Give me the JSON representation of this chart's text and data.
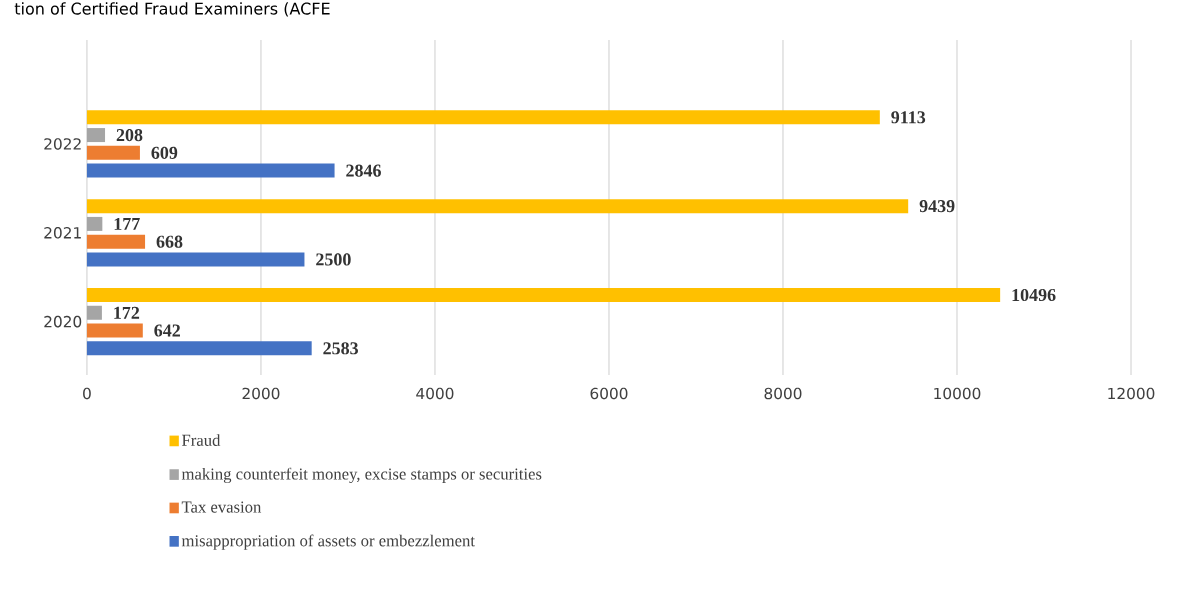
{
  "chart_data": {
    "type": "bar",
    "orientation": "horizontal",
    "categories": [
      "2022",
      "2021",
      "2020"
    ],
    "series": [
      {
        "name": "Fraud",
        "color": "#ffc000",
        "values": [
          9113,
          9439,
          10496
        ]
      },
      {
        "name": "making counterfeit money, excise stamps or securities",
        "color": "#a5a5a5",
        "values": [
          208,
          177,
          172
        ]
      },
      {
        "name": "Tax evasion",
        "color": "#ed7d31",
        "values": [
          609,
          668,
          642
        ]
      },
      {
        "name": "misappropriation of assets or embezzlement",
        "color": "#4472c4",
        "values": [
          2846,
          2500,
          2583
        ]
      }
    ],
    "xlim": [
      0,
      12000
    ],
    "xticks": [
      0,
      2000,
      4000,
      6000,
      8000,
      10000,
      12000
    ],
    "grid": "x",
    "legend": "bottom",
    "data_labels": true,
    "annotations": [
      "tion of Certified Fraud Examiners (ACFE"
    ]
  }
}
